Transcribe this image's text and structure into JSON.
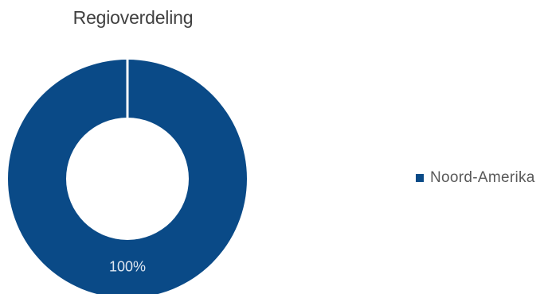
{
  "chart_data": {
    "type": "pie",
    "title": "Regioverdeling",
    "categories": [
      "Noord-Amerika"
    ],
    "values": [
      100
    ],
    "data_labels": [
      "100%"
    ],
    "colors": [
      "#0a4a87"
    ],
    "legend_position": "right",
    "donut": true
  }
}
